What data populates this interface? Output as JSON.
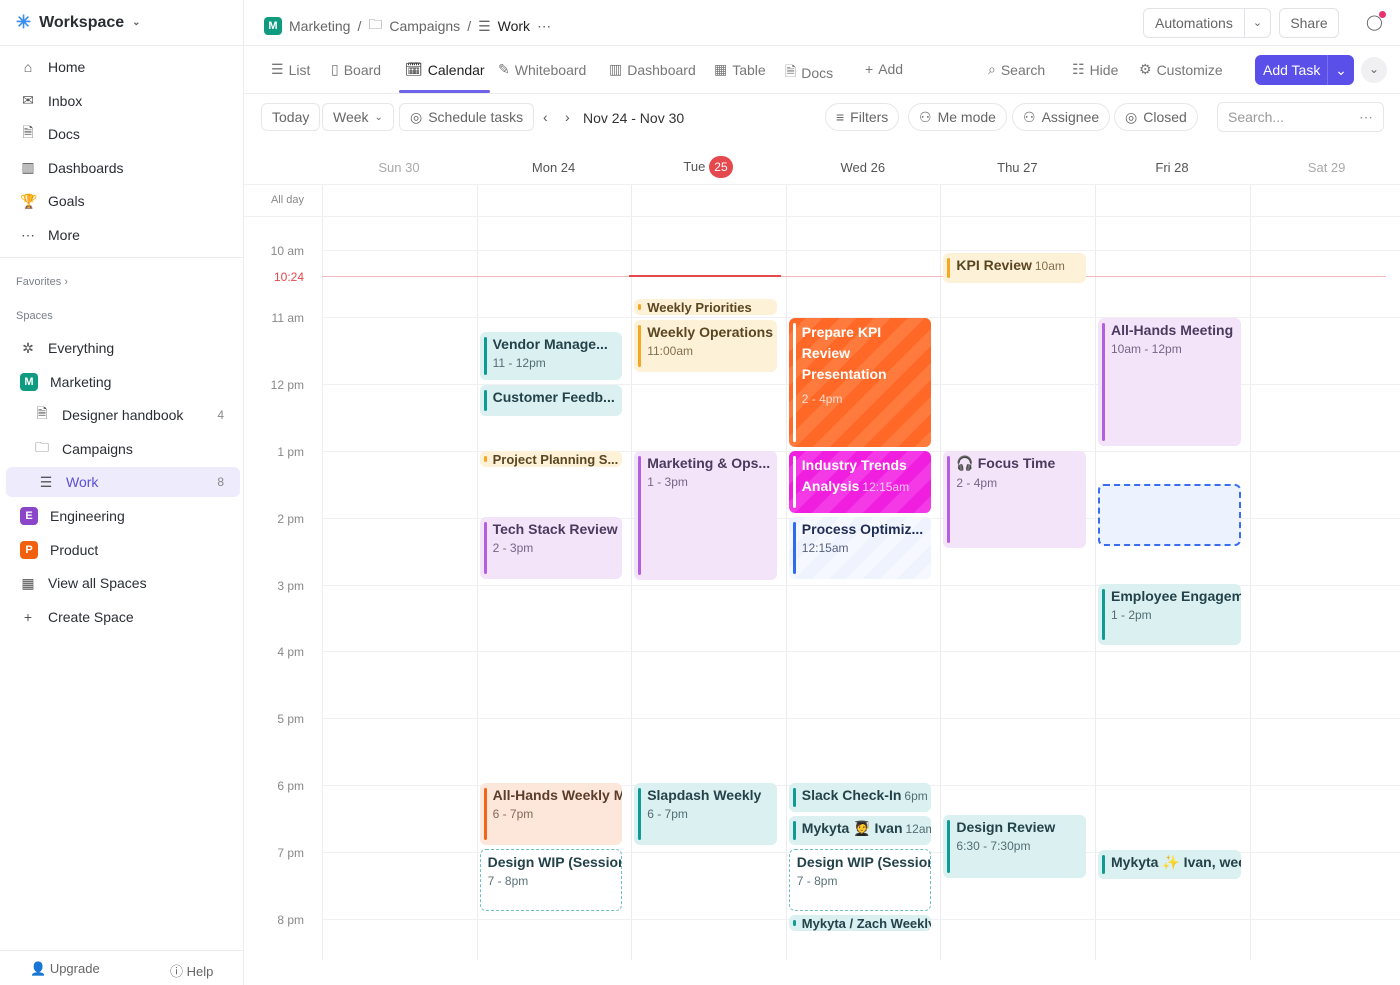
{
  "sidebar": {
    "workspace": "Workspace",
    "nav": [
      {
        "label": "Home",
        "icon": "home-icon"
      },
      {
        "label": "Inbox",
        "icon": "inbox-icon"
      },
      {
        "label": "Docs",
        "icon": "doc-icon"
      },
      {
        "label": "Dashboards",
        "icon": "dashboard-icon"
      },
      {
        "label": "Goals",
        "icon": "trophy-icon"
      },
      {
        "label": "More",
        "icon": "more-icon"
      }
    ],
    "favorites": "Favorites",
    "spaces_label": "Spaces",
    "spaces": [
      {
        "label": "Everything"
      },
      {
        "label": "Marketing",
        "badge": "M",
        "color": "#0f9b7f"
      },
      {
        "label": "Designer handbook",
        "count": "4"
      },
      {
        "label": "Campaigns"
      },
      {
        "label": "Work",
        "count": "8"
      },
      {
        "label": "Engineering",
        "badge": "E",
        "color": "#8a45c9"
      },
      {
        "label": "Product",
        "badge": "P",
        "color": "#f0600f"
      },
      {
        "label": "View all Spaces"
      },
      {
        "label": "Create Space"
      }
    ],
    "upgrade": "Upgrade",
    "help": "Help"
  },
  "header": {
    "breadcrumb": [
      "M",
      "Marketing",
      "Campaigns",
      "Work"
    ],
    "automations": "Automations",
    "share": "Share"
  },
  "tabs": [
    "List",
    "Board",
    "Calendar",
    "Whiteboard",
    "Dashboard",
    "Table",
    "Docs",
    "Add"
  ],
  "tools": {
    "search": "Search",
    "hide": "Hide",
    "customize": "Customize",
    "add_task": "Add Task"
  },
  "toolbar": {
    "today": "Today",
    "week": "Week",
    "schedule": "Schedule tasks",
    "range": "Nov 24 - Nov 30",
    "filters": "Filters",
    "me_mode": "Me mode",
    "assignee": "Assignee",
    "closed": "Closed",
    "search_placeholder": "Search..."
  },
  "calendar": {
    "days": [
      {
        "label": "Sun 30"
      },
      {
        "label": "Mon  24"
      },
      {
        "label": "Tue",
        "num": "25"
      },
      {
        "label": "Wed  26"
      },
      {
        "label": "Thu  27"
      },
      {
        "label": "Fri  28"
      },
      {
        "label": "Sat  29"
      }
    ],
    "all_day": "All day",
    "hours": [
      "10 am",
      "11 am",
      "12 pm",
      "1 pm",
      "2 pm",
      "3 pm",
      "4 pm",
      "5 pm",
      "6 pm",
      "7 pm",
      "8 pm"
    ],
    "now": "10:24",
    "colors": {
      "accent": "#5b4fea",
      "now": "#e5484d"
    },
    "events": [
      {
        "title": "KPI Review",
        "time": "10am",
        "color": "yellow"
      },
      {
        "title": "Weekly Priorities",
        "time": "",
        "color": "yellow"
      },
      {
        "title": "Weekly Operations",
        "time": "11:00am",
        "color": "yellow"
      },
      {
        "title": "Vendor Manage...",
        "time": "11 - 12pm",
        "color": "teal"
      },
      {
        "title": "Customer Feedb...",
        "time": "",
        "color": "teal"
      },
      {
        "title": "Prepare KPI Review Presentation",
        "time": "2 - 4pm",
        "color": "orange"
      },
      {
        "title": "All-Hands Meeting",
        "time": "10am - 12pm",
        "color": "purple"
      },
      {
        "title": "Project Planning S...",
        "time": "",
        "color": "yellow"
      },
      {
        "title": "Marketing & Ops...",
        "time": "1 - 3pm",
        "color": "purple"
      },
      {
        "title": "Industry Trends Analysis",
        "time": "12:15am",
        "color": "magenta"
      },
      {
        "title": "🎧 Focus Time",
        "time": "2 - 4pm",
        "color": "purple"
      },
      {
        "title": "",
        "time": "",
        "color": "bdash"
      },
      {
        "title": "Tech Stack Review",
        "time": "2 - 3pm",
        "color": "purple"
      },
      {
        "title": "Process Optimiz...",
        "time": "12:15am",
        "color": "lblue"
      },
      {
        "title": "Employee Engagement",
        "time": "1 - 2pm",
        "color": "teal"
      },
      {
        "title": "All-Hands Weekly Meeting",
        "time": "6 - 7pm",
        "color": "peach"
      },
      {
        "title": "Slapdash Weekly",
        "time": "6 - 7pm",
        "color": "teal"
      },
      {
        "title": "Slack Check-In",
        "time": "6pm",
        "color": "teal"
      },
      {
        "title": "Mykyta 🧑‍🎓 Ivan",
        "time": "12am",
        "color": "teal"
      },
      {
        "title": "Design Review",
        "time": "6:30 - 7:30pm",
        "color": "teal"
      },
      {
        "title": "Design WIP (Session)",
        "time": "7 - 8pm",
        "color": "dashed"
      },
      {
        "title": "Design WIP (Session)",
        "time": "7 - 8pm",
        "color": "dashed"
      },
      {
        "title": "Mykyta ✨ Ivan, weekly",
        "time": "",
        "color": "teal"
      },
      {
        "title": "Mykyta / Zach Weekly",
        "time": "",
        "color": "teal"
      }
    ]
  }
}
